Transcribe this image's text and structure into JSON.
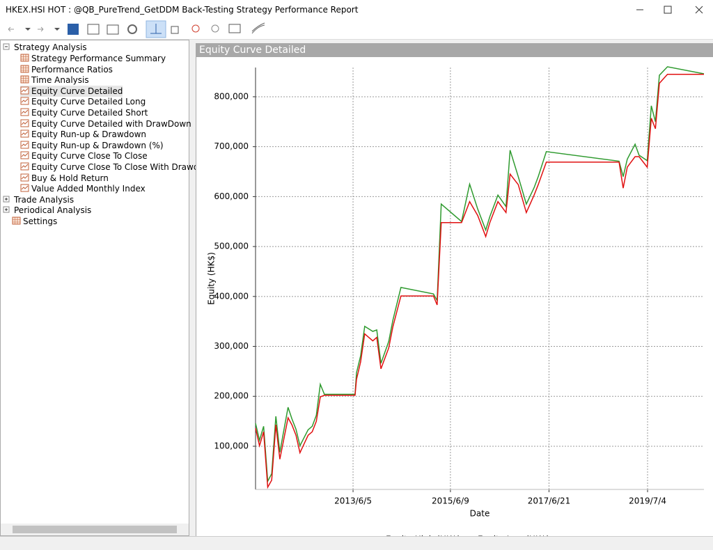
{
  "window": {
    "title": "HKEX.HSI HOT : @QB_PureTrend_GetDDM Back-Testing Strategy Performance Report"
  },
  "tree": {
    "root": "Strategy Analysis",
    "items": [
      "Strategy Performance Summary",
      "Performance Ratios",
      "Time Analysis",
      "Equity Curve Detailed",
      "Equity Curve Detailed Long",
      "Equity Curve Detailed Short",
      "Equity Curve Detailed with DrawDown",
      "Equity Run-up & Drawdown",
      "Equity Run-up & Drawdown (%)",
      "Equity Curve Close To Close",
      "Equity Curve Close To Close With Drawdown",
      "Buy & Hold Return",
      "Value Added Monthly Index"
    ],
    "others": [
      "Trade Analysis",
      "Periodical Analysis",
      "Settings"
    ]
  },
  "panel_title": "Equity Curve Detailed",
  "chart_data": {
    "type": "line",
    "x_label": "Date",
    "y_label": "Equity (HK$)",
    "grid": true,
    "x": [
      "2011/6/1",
      "2011/7/1",
      "2011/8/1",
      "2011/9/1",
      "2011/10/1",
      "2011/11/1",
      "2011/12/1",
      "2012/2/1",
      "2012/3/1",
      "2012/4/1",
      "2012/5/1",
      "2012/7/1",
      "2012/8/1",
      "2012/9/1",
      "2012/10/1",
      "2012/11/1",
      "2013/6/20",
      "2013/7/1",
      "2013/8/1",
      "2013/9/1",
      "2013/11/1",
      "2013/12/1",
      "2014/1/1",
      "2014/3/1",
      "2014/4/1",
      "2014/6/1",
      "2015/2/1",
      "2015/3/1",
      "2015/4/1",
      "2015/9/1",
      "2015/11/1",
      "2016/1/1",
      "2016/3/1",
      "2016/4/1",
      "2016/6/1",
      "2016/8/1",
      "2016/9/1",
      "2016/11/1",
      "2017/1/1",
      "2017/3/1",
      "2017/4/1",
      "2017/6/1",
      "2018/12/1",
      "2019/1/1",
      "2019/2/1",
      "2019/4/1",
      "2019/5/1",
      "2019/7/1",
      "2019/8/1",
      "2019/9/1",
      "2019/10/1",
      "2019/12/1",
      "2020/9/1"
    ],
    "series": [
      {
        "name": "Equity High (HK$)",
        "color": "#2e9a2e",
        "values": [
          146000,
          112000,
          140000,
          30000,
          45000,
          160000,
          88000,
          178000,
          155000,
          134000,
          101000,
          133000,
          140000,
          162000,
          224000,
          204000,
          204000,
          247000,
          281000,
          340000,
          330000,
          333000,
          266000,
          310000,
          352000,
          418000,
          405000,
          392000,
          585000,
          550000,
          625000,
          575000,
          533000,
          560000,
          603000,
          580000,
          693000,
          640000,
          585000,
          618000,
          640000,
          690000,
          671000,
          640000,
          675000,
          705000,
          683000,
          672000,
          782000,
          750000,
          843000,
          860000,
          846000
        ]
      },
      {
        "name": "Equity Low (HK$)",
        "color": "#e01010",
        "values": [
          136000,
          101000,
          129000,
          18000,
          32000,
          143000,
          74000,
          157000,
          143000,
          122000,
          87000,
          122000,
          129000,
          150000,
          199000,
          202000,
          202000,
          234000,
          269000,
          325000,
          311000,
          318000,
          255000,
          297000,
          339000,
          401000,
          401000,
          383000,
          548000,
          548000,
          590000,
          562000,
          520000,
          548000,
          590000,
          568000,
          645000,
          624000,
          568000,
          603000,
          624000,
          669000,
          669000,
          617000,
          659000,
          680000,
          680000,
          659000,
          757000,
          736000,
          827000,
          845000,
          845000
        ]
      }
    ],
    "xlim": [
      "2011/6/1",
      "2020/9/1"
    ],
    "xticks": [
      "2013/6/5",
      "2015/6/9",
      "2017/6/21",
      "2019/7/4"
    ],
    "ylim": [
      13500,
      858500
    ],
    "yticks": [
      {
        "value": 100000,
        "label": "100,000"
      },
      {
        "value": 200000,
        "label": "200,000"
      },
      {
        "value": 300000,
        "label": "300,000"
      },
      {
        "value": 400000,
        "label": "400,000"
      },
      {
        "value": 500000,
        "label": "500,000"
      },
      {
        "value": 600000,
        "label": "600,000"
      },
      {
        "value": 700000,
        "label": "700,000"
      },
      {
        "value": 800000,
        "label": "800,000"
      }
    ]
  }
}
